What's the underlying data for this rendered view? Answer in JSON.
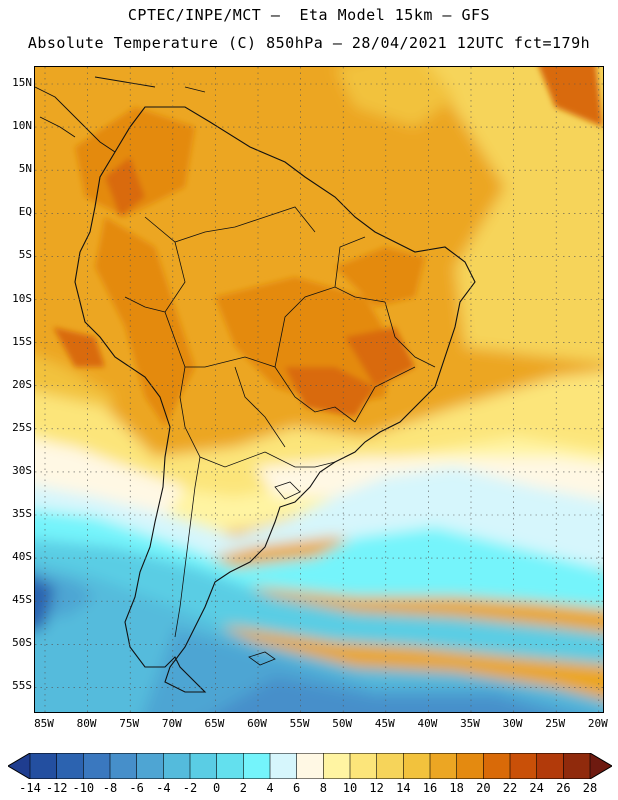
{
  "header": {
    "line1": "CPTEC/INPE/MCT –  Eta Model 15km – GFS",
    "line2": "Absolute Temperature (C) 850hPa – 28/04/2021 12UTC fct=179h"
  },
  "map": {
    "lat_labels": [
      "15N",
      "10N",
      "5N",
      "EQ",
      "5S",
      "10S",
      "15S",
      "20S",
      "25S",
      "30S",
      "35S",
      "40S",
      "45S",
      "50S",
      "55S"
    ],
    "lon_labels": [
      "85W",
      "80W",
      "75W",
      "70W",
      "65W",
      "60W",
      "55W",
      "50W",
      "45W",
      "40W",
      "35W",
      "30W",
      "25W",
      "20W"
    ],
    "grid": "dotted"
  },
  "colorbar": {
    "labels": [
      "-14",
      "-12",
      "-10",
      "-8",
      "-6",
      "-4",
      "-2",
      "0",
      "2",
      "4",
      "6",
      "8",
      "10",
      "12",
      "14",
      "16",
      "18",
      "20",
      "22",
      "24",
      "26",
      "28"
    ],
    "colors": [
      "#1f3d8f",
      "#234fa0",
      "#2c63b0",
      "#3a78bf",
      "#468fca",
      "#4ea5d3",
      "#54bbdc",
      "#5acde4",
      "#63e0ee",
      "#74f4fb",
      "#d6f6fc",
      "#fff8e4",
      "#fff4a2",
      "#fce57a",
      "#f6d45a",
      "#f2c23d",
      "#eca623",
      "#e48a10",
      "#d96a08",
      "#c95008",
      "#b23a0a",
      "#902a0c",
      "#6e1a10"
    ]
  }
}
